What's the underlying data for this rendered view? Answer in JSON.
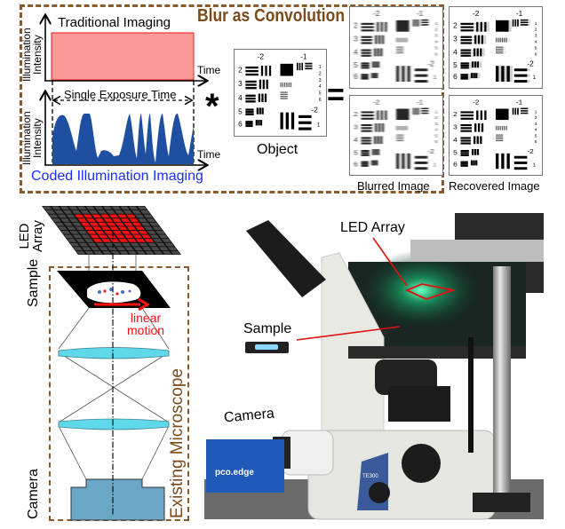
{
  "top_panel": {
    "title": "Blur as Convolution",
    "traditional_label": "Traditional Imaging",
    "coded_label": "Coded Illumination Imaging",
    "y_axis_label_line1": "Illumination",
    "y_axis_label_line2": "Intensity",
    "x_axis_label": "Time",
    "exposure_label": "Single Exposure Time",
    "convolution_symbol": "*",
    "equals_symbol": "=",
    "object_label": "Object",
    "blurred_label": "Blurred Image",
    "recovered_label": "Recovered Image",
    "target_labels": {
      "group_a": "-2",
      "group_b": "-1",
      "elements": [
        "2",
        "3",
        "4",
        "5",
        "6"
      ],
      "small_group": "-2",
      "small_elements": [
        "1",
        "2",
        "3",
        "4",
        "5",
        "6"
      ],
      "bottom_element": "1"
    }
  },
  "schematic": {
    "led_label_line1": "LED",
    "led_label_line2": "Array",
    "sample_label": "Sample",
    "camera_label": "Camera",
    "motion_label_line1": "linear",
    "motion_label_line2": "motion",
    "microscope_label": "Existing Microscope"
  },
  "photo": {
    "led_label": "LED Array",
    "sample_label": "Sample",
    "camera_label": "Camera",
    "camera_brand": "pco.edge",
    "microscope_model": "TE300"
  },
  "colors": {
    "frame_brown": "#8b5a2b",
    "traditional_fill": "#fa9a9a",
    "coded_fill": "#1f4fa0",
    "coded_text": "#1a2eff",
    "led_red": "#ff1010",
    "lens_cyan": "#5fd8ea",
    "camera_blue": "#6aa7c6",
    "annotation_red": "#e01010"
  }
}
